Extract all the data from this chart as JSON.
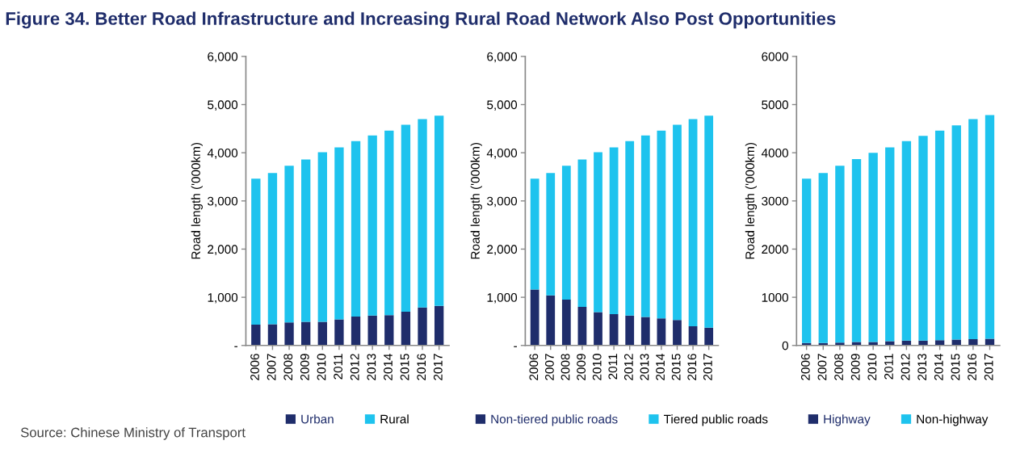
{
  "chart_data": [
    {
      "type": "bar",
      "stacked": true,
      "title": "Figure 34. Better Road Infrastructure and Increasing Rural Road Network Also Post Opportunities",
      "ylabel": "Road length ('000km)",
      "categories": [
        "2006",
        "2007",
        "2008",
        "2009",
        "2010",
        "2011",
        "2012",
        "2013",
        "2014",
        "2015",
        "2016",
        "2017"
      ],
      "ylim": [
        0,
        6000
      ],
      "yticks": [
        {
          "value": 0,
          "label": "-"
        },
        {
          "value": 1000,
          "label": "1,000"
        },
        {
          "value": 2000,
          "label": "2,000"
        },
        {
          "value": 3000,
          "label": "3,000"
        },
        {
          "value": 4000,
          "label": "4,000"
        },
        {
          "value": 5000,
          "label": "5,000"
        },
        {
          "value": 6000,
          "label": "6,000"
        }
      ],
      "legend": "bottom",
      "grid": false,
      "series": [
        {
          "name": "Urban",
          "color": "#1f2d6b",
          "values": [
            430,
            440,
            480,
            490,
            490,
            540,
            600,
            620,
            630,
            700,
            790,
            820
          ]
        },
        {
          "name": "Rural",
          "color": "#1ec3ee",
          "values": [
            3030,
            3140,
            3250,
            3370,
            3520,
            3570,
            3640,
            3740,
            3830,
            3880,
            3910,
            3950
          ]
        }
      ]
    },
    {
      "type": "bar",
      "stacked": true,
      "ylabel": "Road length ('000km)",
      "categories": [
        "2006",
        "2007",
        "2008",
        "2009",
        "2010",
        "2011",
        "2012",
        "2013",
        "2014",
        "2015",
        "2016",
        "2017"
      ],
      "ylim": [
        0,
        6000
      ],
      "yticks": [
        {
          "value": 0,
          "label": "-"
        },
        {
          "value": 1000,
          "label": "1,000"
        },
        {
          "value": 2000,
          "label": "2,000"
        },
        {
          "value": 3000,
          "label": "3,000"
        },
        {
          "value": 4000,
          "label": "4,000"
        },
        {
          "value": 5000,
          "label": "5,000"
        },
        {
          "value": 6000,
          "label": "6,000"
        }
      ],
      "legend": "bottom",
      "grid": false,
      "series": [
        {
          "name": "Non-tiered public roads",
          "color": "#1f2d6b",
          "values": [
            1160,
            1040,
            950,
            800,
            690,
            650,
            620,
            590,
            560,
            530,
            400,
            370
          ]
        },
        {
          "name": "Tiered public roads",
          "color": "#1ec3ee",
          "values": [
            2300,
            2540,
            2780,
            3060,
            3320,
            3460,
            3620,
            3770,
            3900,
            4050,
            4300,
            4400
          ]
        }
      ]
    },
    {
      "type": "bar",
      "stacked": true,
      "ylabel": "Road length ('000km)",
      "categories": [
        "2006",
        "2007",
        "2008",
        "2009",
        "2010",
        "2011",
        "2012",
        "2013",
        "2014",
        "2015",
        "2016",
        "2017"
      ],
      "ylim": [
        0,
        6000
      ],
      "yticks": [
        0,
        1000,
        2000,
        3000,
        4000,
        5000,
        6000
      ],
      "legend": "bottom",
      "grid": false,
      "annotations": [
        "Source: Chinese Ministry of Transport"
      ],
      "series": [
        {
          "name": "Highway",
          "color": "#1f2d6b",
          "values": [
            50,
            50,
            60,
            70,
            70,
            90,
            100,
            100,
            110,
            120,
            130,
            140
          ]
        },
        {
          "name": "Non-highway",
          "color": "#1ec3ee",
          "values": [
            3410,
            3530,
            3670,
            3800,
            3930,
            4020,
            4140,
            4250,
            4350,
            4450,
            4570,
            4640
          ]
        }
      ]
    }
  ]
}
